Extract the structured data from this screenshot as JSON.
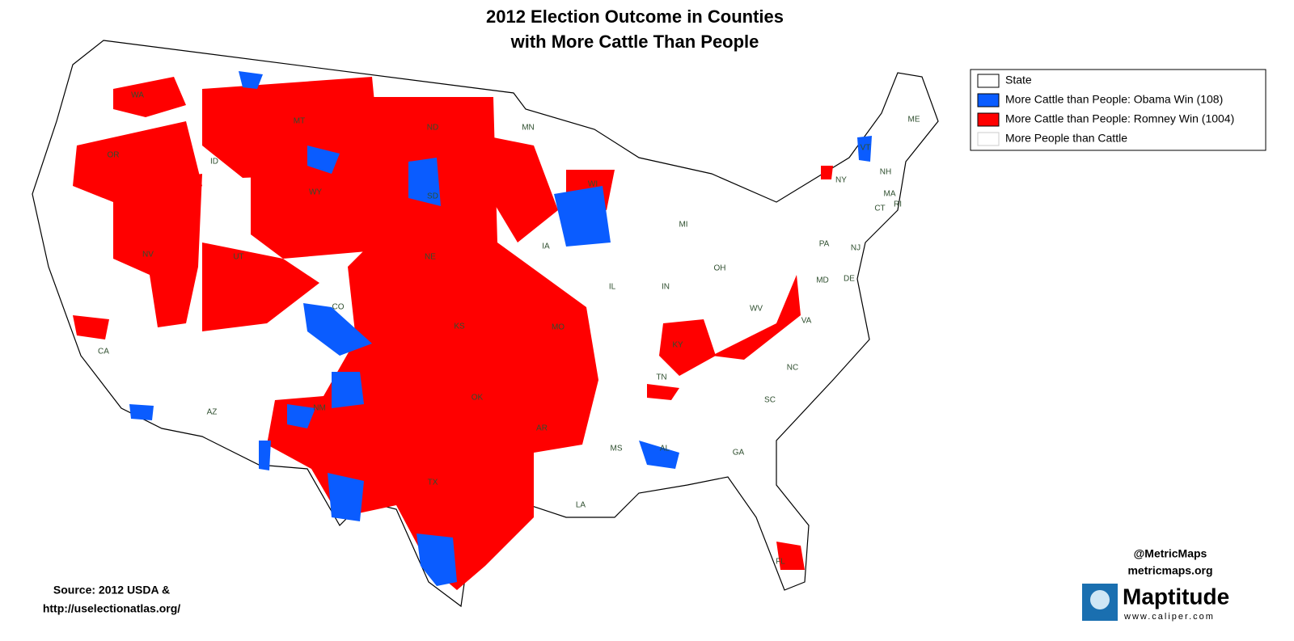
{
  "title": [
    "2012 Election Outcome in Counties",
    "with More Cattle Than People"
  ],
  "legend": [
    {
      "label": "State",
      "color": "#ffffff"
    },
    {
      "label": "More Cattle than People: Obama  Win (108)",
      "color": "#0a5cff"
    },
    {
      "label": "More Cattle than People: Romney Win (1004)",
      "color": "#ff0000"
    },
    {
      "label": "More People than Cattle",
      "color": "#ffffff"
    }
  ],
  "state_labels": [
    "WA",
    "OR",
    "CA",
    "NV",
    "ID",
    "MT",
    "WY",
    "UT",
    "CO",
    "AZ",
    "NM",
    "ND",
    "SD",
    "NE",
    "KS",
    "OK",
    "TX",
    "MN",
    "IA",
    "MO",
    "AR",
    "LA",
    "WI",
    "IL",
    "MI",
    "IN",
    "OH",
    "KY",
    "TN",
    "MS",
    "AL",
    "GA",
    "FL",
    "SC",
    "NC",
    "VA",
    "WV",
    "PA",
    "NY",
    "VT",
    "NH",
    "ME",
    "MA",
    "CT",
    "RI",
    "NJ",
    "DE",
    "MD"
  ],
  "source": [
    "Source: 2012 USDA &",
    "http://uselectionatlas.org/"
  ],
  "credit": {
    "handle": "@MetricMaps",
    "site": "metricmaps.org"
  },
  "logo": {
    "name": "Maptitude",
    "url": "www.caliper.com"
  }
}
